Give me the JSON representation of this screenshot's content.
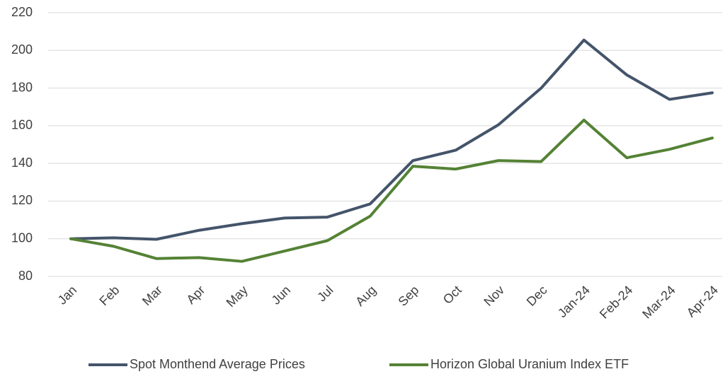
{
  "chart_data": {
    "type": "line",
    "categories": [
      "Jan",
      "Feb",
      "Mar",
      "Apr",
      "May",
      "Jun",
      "Jul",
      "Aug",
      "Sep",
      "Oct",
      "Nov",
      "Dec",
      "Jan-24",
      "Feb-24",
      "Mar-24",
      "Apr-24"
    ],
    "series": [
      {
        "name": "Spot Monthend Average Prices",
        "color": "#44546a",
        "values": [
          100,
          100.5,
          99.7,
          104.5,
          108,
          111,
          111.5,
          118.5,
          141.5,
          147,
          160.5,
          180,
          205.5,
          187,
          174,
          177.5
        ]
      },
      {
        "name": "Horizon Global Uranium Index ETF",
        "color": "#548235",
        "values": [
          100,
          96,
          89.5,
          90,
          88,
          93.5,
          99,
          112,
          138.5,
          137,
          141.5,
          141,
          163,
          143,
          147.5,
          153.5
        ]
      }
    ],
    "ylim": [
      80,
      220
    ],
    "yticks": [
      80,
      100,
      120,
      140,
      160,
      180,
      200,
      220
    ],
    "grid": true,
    "legend": "bottom"
  }
}
